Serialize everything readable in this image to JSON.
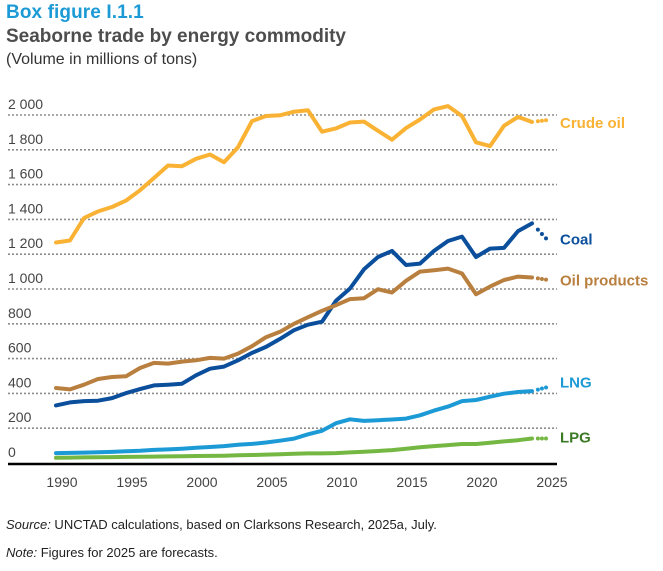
{
  "header": {
    "figure_label": "Box figure  I.1.1",
    "title": "Seaborne trade by energy commodity",
    "subtitle": "(Volume in millions of tons)"
  },
  "footnotes": {
    "source_label": "Source:",
    "source_text": " UNCTAD calculations, based on Clarksons Research, 2025a, July.",
    "note_label": "Note:",
    "note_text": " Figures for 2025 are forecasts."
  },
  "chart_data": {
    "type": "line",
    "title": "Seaborne trade by energy commodity",
    "subtitle": "(Volume in millions of tons)",
    "xlabel": "",
    "ylabel": "Volume in millions of tons",
    "xlim": [
      1990,
      2025
    ],
    "ylim": [
      0,
      2000
    ],
    "grid": true,
    "legend": "inline-right",
    "forecast_year": 2025,
    "x": [
      1990,
      1991,
      1992,
      1993,
      1994,
      1995,
      1996,
      1997,
      1998,
      1999,
      2000,
      2001,
      2002,
      2003,
      2004,
      2005,
      2006,
      2007,
      2008,
      2009,
      2010,
      2011,
      2012,
      2013,
      2014,
      2015,
      2016,
      2017,
      2018,
      2019,
      2020,
      2021,
      2022,
      2023,
      2024,
      2025
    ],
    "x_ticks": [
      1990,
      1995,
      2000,
      2005,
      2010,
      2015,
      2020,
      2025
    ],
    "x_tick_labels": [
      "1990",
      "1995",
      "2000",
      "2005",
      "2010",
      "2015",
      "2020",
      "2025"
    ],
    "y_ticks": [
      0,
      200,
      400,
      600,
      800,
      1000,
      1200,
      1400,
      1600,
      1800,
      2000
    ],
    "y_tick_labels": [
      "0",
      "200",
      "400",
      "600",
      "800",
      "1 000",
      "1 200",
      "1 400",
      "1 600",
      "1 800",
      "2 000"
    ],
    "series": [
      {
        "name": "Crude oil",
        "color": "#f9b233",
        "label_color": "#f9b233",
        "values": [
          1267,
          1279,
          1408,
          1446,
          1471,
          1508,
          1567,
          1638,
          1710,
          1706,
          1748,
          1773,
          1729,
          1815,
          1965,
          1994,
          1998,
          2019,
          2027,
          1904,
          1923,
          1957,
          1962,
          1909,
          1858,
          1925,
          1974,
          2032,
          2051,
          1994,
          1843,
          1821,
          1938,
          1989,
          1960,
          1970
        ]
      },
      {
        "name": "Coal",
        "color": "#0b4f9c",
        "label_color": "#0b4f9c",
        "values": [
          331,
          348,
          356,
          358,
          373,
          402,
          425,
          446,
          450,
          456,
          504,
          542,
          554,
          590,
          633,
          667,
          713,
          763,
          795,
          812,
          932,
          1003,
          1113,
          1184,
          1219,
          1138,
          1146,
          1219,
          1276,
          1301,
          1184,
          1232,
          1236,
          1333,
          1377,
          1291
        ]
      },
      {
        "name": "Oil products",
        "color": "#b87f3f",
        "label_color": "#b87f3f",
        "values": [
          431,
          423,
          450,
          483,
          494,
          498,
          546,
          575,
          571,
          583,
          590,
          604,
          600,
          629,
          671,
          723,
          754,
          800,
          838,
          875,
          907,
          942,
          947,
          999,
          980,
          1047,
          1100,
          1108,
          1117,
          1089,
          970,
          1014,
          1052,
          1071,
          1066,
          1054
        ]
      },
      {
        "name": "LNG",
        "color": "#1c9ad6",
        "label_color": "#1c9ad6",
        "values": [
          57,
          58,
          60,
          62,
          64,
          67,
          70,
          75,
          78,
          82,
          88,
          92,
          97,
          105,
          110,
          118,
          128,
          140,
          165,
          185,
          229,
          251,
          242,
          246,
          250,
          255,
          274,
          301,
          324,
          356,
          362,
          381,
          398,
          408,
          413,
          434
        ]
      },
      {
        "name": "LPG",
        "color": "#74b843",
        "label_color": "#3c7a26",
        "values": [
          30,
          31,
          32,
          33,
          34,
          35,
          36,
          37,
          38,
          39,
          40,
          41,
          42,
          44,
          46,
          48,
          50,
          53,
          55,
          55,
          57,
          61,
          65,
          69,
          74,
          82,
          90,
          97,
          103,
          109,
          109,
          116,
          124,
          131,
          141,
          141
        ]
      }
    ]
  }
}
